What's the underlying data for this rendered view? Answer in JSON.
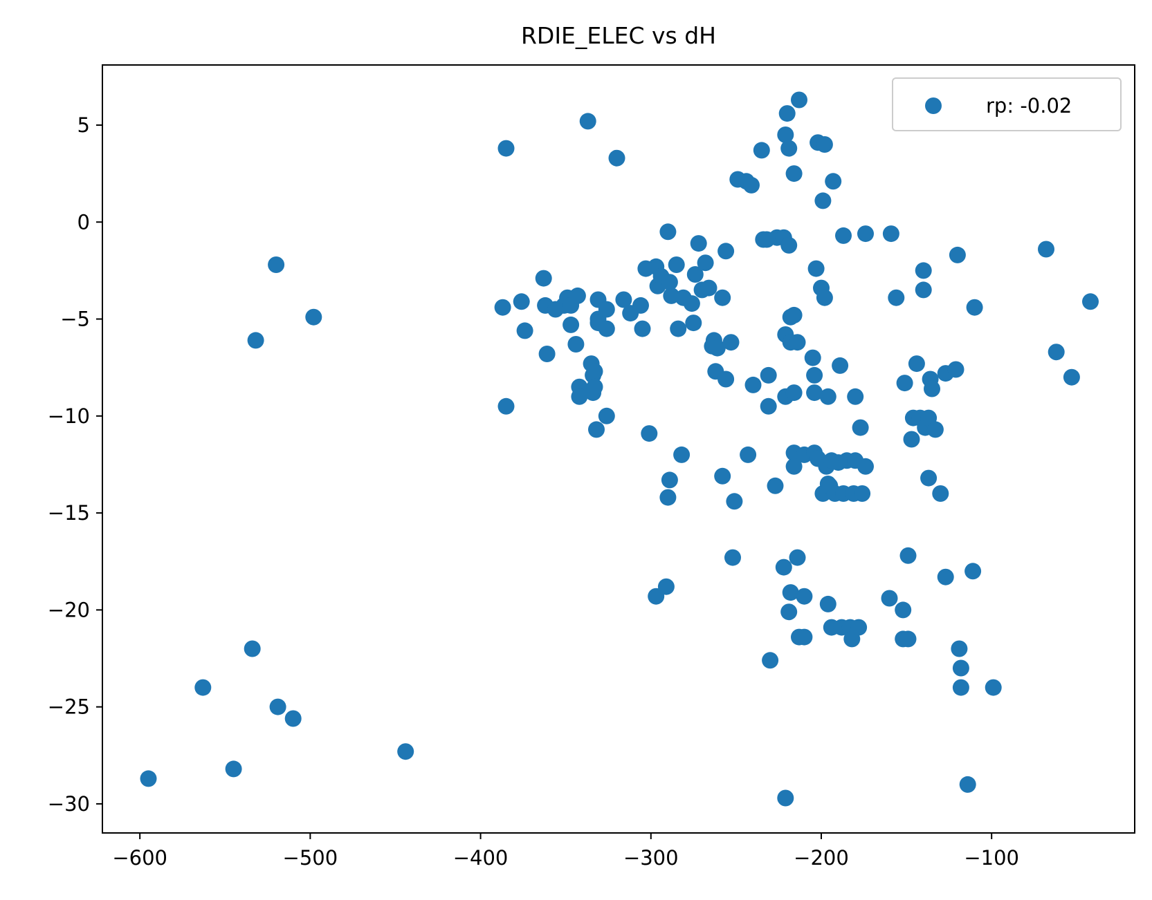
{
  "chart_data": {
    "type": "scatter",
    "title": "RDIE_ELEC vs dH",
    "xlabel": "",
    "ylabel": "",
    "xlim": [
      -622,
      -16
    ],
    "ylim": [
      -31.5,
      8.1
    ],
    "xticks": [
      -600,
      -500,
      -400,
      -300,
      -200,
      -100
    ],
    "yticks": [
      5,
      0,
      -5,
      -10,
      -15,
      -20,
      -25,
      -30
    ],
    "xtick_labels": [
      "−600",
      "−500",
      "−400",
      "−300",
      "−200",
      "−100"
    ],
    "ytick_labels": [
      "5",
      "0",
      "−5",
      "−10",
      "−15",
      "−20",
      "−25",
      "−30"
    ],
    "grid": false,
    "legend_position": "top-right",
    "series": [
      {
        "name": "rp: -0.02",
        "color": "#1f77b4",
        "points": [
          [
            -595,
            -28.7
          ],
          [
            -563,
            -24.0
          ],
          [
            -545,
            -28.2
          ],
          [
            -534,
            -22.0
          ],
          [
            -532,
            -6.1
          ],
          [
            -520,
            -2.2
          ],
          [
            -519,
            -25.0
          ],
          [
            -510,
            -25.6
          ],
          [
            -498,
            -4.9
          ],
          [
            -444,
            -27.3
          ],
          [
            -387,
            -4.4
          ],
          [
            -385,
            3.8
          ],
          [
            -385,
            -9.5
          ],
          [
            -376,
            -4.1
          ],
          [
            -374,
            -5.6
          ],
          [
            -363,
            -2.9
          ],
          [
            -362,
            -4.3
          ],
          [
            -361,
            -6.8
          ],
          [
            -356,
            -4.5
          ],
          [
            -351,
            -4.3
          ],
          [
            -349,
            -3.9
          ],
          [
            -347,
            -4.3
          ],
          [
            -347,
            -5.3
          ],
          [
            -344,
            -6.3
          ],
          [
            -343,
            -3.8
          ],
          [
            -342,
            -8.5
          ],
          [
            -342,
            -9.0
          ],
          [
            -337,
            5.2
          ],
          [
            -335,
            -7.3
          ],
          [
            -334,
            -8.8
          ],
          [
            -334,
            -7.9
          ],
          [
            -333,
            -7.7
          ],
          [
            -333,
            -8.5
          ],
          [
            -332,
            -10.7
          ],
          [
            -331,
            -4.0
          ],
          [
            -331,
            -5.0
          ],
          [
            -331,
            -5.2
          ],
          [
            -326,
            -10.0
          ],
          [
            -326,
            -4.5
          ],
          [
            -326,
            -5.5
          ],
          [
            -320,
            3.3
          ],
          [
            -316,
            -4.0
          ],
          [
            -312,
            -4.7
          ],
          [
            -306,
            -4.3
          ],
          [
            -305,
            -5.5
          ],
          [
            -303,
            -2.4
          ],
          [
            -301,
            -10.9
          ],
          [
            -297,
            -19.3
          ],
          [
            -297,
            -2.3
          ],
          [
            -296,
            -3.3
          ],
          [
            -294,
            -2.8
          ],
          [
            -291,
            -18.8
          ],
          [
            -290,
            -0.5
          ],
          [
            -290,
            -14.2
          ],
          [
            -289,
            -13.3
          ],
          [
            -289,
            -3.1
          ],
          [
            -288,
            -3.8
          ],
          [
            -285,
            -2.2
          ],
          [
            -284,
            -5.5
          ],
          [
            -282,
            -12.0
          ],
          [
            -281,
            -3.9
          ],
          [
            -276,
            -4.2
          ],
          [
            -275,
            -5.2
          ],
          [
            -274,
            -2.7
          ],
          [
            -272,
            -1.1
          ],
          [
            -270,
            -3.5
          ],
          [
            -268,
            -2.1
          ],
          [
            -266,
            -3.4
          ],
          [
            -264,
            -6.4
          ],
          [
            -263,
            -6.1
          ],
          [
            -262,
            -7.7
          ],
          [
            -261,
            -6.5
          ],
          [
            -258,
            -3.9
          ],
          [
            -258,
            -13.1
          ],
          [
            -256,
            -1.5
          ],
          [
            -256,
            -8.1
          ],
          [
            -253,
            -6.2
          ],
          [
            -252,
            -17.3
          ],
          [
            -251,
            -14.4
          ],
          [
            -249,
            2.2
          ],
          [
            -244,
            2.1
          ],
          [
            -243,
            -12.0
          ],
          [
            -241,
            1.9
          ],
          [
            -240,
            -8.4
          ],
          [
            -235,
            3.7
          ],
          [
            -234,
            -0.9
          ],
          [
            -232,
            -0.9
          ],
          [
            -231,
            -9.5
          ],
          [
            -231,
            -7.9
          ],
          [
            -230,
            -22.6
          ],
          [
            -227,
            -13.6
          ],
          [
            -226,
            -0.8
          ],
          [
            -222,
            -0.8
          ],
          [
            -222,
            -17.8
          ],
          [
            -221,
            -9.0
          ],
          [
            -221,
            -5.8
          ],
          [
            -221,
            -29.7
          ],
          [
            -221,
            4.5
          ],
          [
            -220,
            5.6
          ],
          [
            -219,
            -1.2
          ],
          [
            -219,
            -20.1
          ],
          [
            -219,
            3.8
          ],
          [
            -218,
            -19.1
          ],
          [
            -218,
            -4.9
          ],
          [
            -218,
            -6.2
          ],
          [
            -216,
            2.5
          ],
          [
            -216,
            -4.8
          ],
          [
            -216,
            -8.8
          ],
          [
            -216,
            -11.9
          ],
          [
            -216,
            -12.6
          ],
          [
            -214,
            -17.3
          ],
          [
            -214,
            -6.2
          ],
          [
            -213,
            -21.4
          ],
          [
            -213,
            6.3
          ],
          [
            -210,
            -19.3
          ],
          [
            -210,
            -21.4
          ],
          [
            -210,
            -12.0
          ],
          [
            -205,
            -7.0
          ],
          [
            -204,
            -7.9
          ],
          [
            -204,
            -8.8
          ],
          [
            -204,
            -11.9
          ],
          [
            -203,
            -2.4
          ],
          [
            -202,
            4.1
          ],
          [
            -202,
            -12.2
          ],
          [
            -200,
            -3.4
          ],
          [
            -199,
            -14.0
          ],
          [
            -199,
            1.1
          ],
          [
            -198,
            4.0
          ],
          [
            -198,
            -3.9
          ],
          [
            -197,
            -12.6
          ],
          [
            -196,
            -19.7
          ],
          [
            -196,
            -9.0
          ],
          [
            -196,
            -13.5
          ],
          [
            -195,
            -13.6
          ],
          [
            -194,
            -20.9
          ],
          [
            -194,
            -12.3
          ],
          [
            -193,
            2.1
          ],
          [
            -192,
            -14.0
          ],
          [
            -190,
            -12.4
          ],
          [
            -189,
            -7.4
          ],
          [
            -188,
            -20.9
          ],
          [
            -187,
            -0.7
          ],
          [
            -187,
            -14.0
          ],
          [
            -185,
            -12.3
          ],
          [
            -183,
            -20.9
          ],
          [
            -182,
            -21.5
          ],
          [
            -181,
            -14.0
          ],
          [
            -180,
            -9.0
          ],
          [
            -180,
            -12.3
          ],
          [
            -178,
            -20.9
          ],
          [
            -177,
            -10.6
          ],
          [
            -176,
            -14.0
          ],
          [
            -174,
            -0.6
          ],
          [
            -174,
            -12.6
          ],
          [
            -160,
            -19.4
          ],
          [
            -159,
            -0.6
          ],
          [
            -156,
            -3.9
          ],
          [
            -152,
            -21.5
          ],
          [
            -152,
            -20.0
          ],
          [
            -151,
            -8.3
          ],
          [
            -149,
            -21.5
          ],
          [
            -149,
            -17.2
          ],
          [
            -147,
            -11.2
          ],
          [
            -146,
            -10.1
          ],
          [
            -144,
            -7.3
          ],
          [
            -142,
            -10.1
          ],
          [
            -140,
            -2.5
          ],
          [
            -140,
            -3.5
          ],
          [
            -139,
            -10.6
          ],
          [
            -137,
            -10.1
          ],
          [
            -137,
            -13.2
          ],
          [
            -136,
            -8.1
          ],
          [
            -135,
            -8.6
          ],
          [
            -133,
            -10.7
          ],
          [
            -130,
            -14.0
          ],
          [
            -127,
            -18.3
          ],
          [
            -127,
            -7.8
          ],
          [
            -121,
            -7.6
          ],
          [
            -120,
            -1.7
          ],
          [
            -119,
            -22.0
          ],
          [
            -118,
            -23.0
          ],
          [
            -118,
            -24.0
          ],
          [
            -114,
            -29.0
          ],
          [
            -111,
            -18.0
          ],
          [
            -110,
            -4.4
          ],
          [
            -99,
            -24.0
          ],
          [
            -68,
            -1.4
          ],
          [
            -62,
            -6.7
          ],
          [
            -53,
            -8.0
          ],
          [
            -42,
            -4.1
          ]
        ]
      }
    ]
  }
}
